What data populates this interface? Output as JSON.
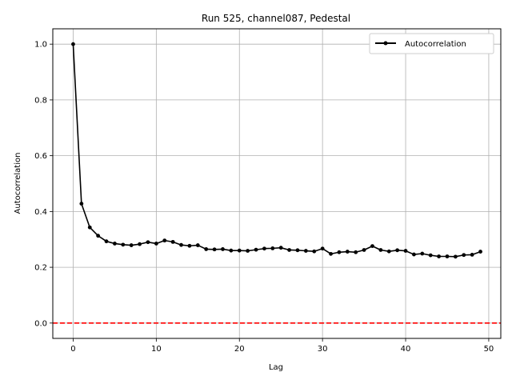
{
  "chart_data": {
    "type": "line",
    "title": "Run 525, channel087, Pedestal",
    "xlabel": "Lag",
    "ylabel": "Autocorrelation",
    "xlim": [
      -2.45,
      51.45
    ],
    "ylim": [
      -0.055,
      1.055
    ],
    "xticks": [
      0,
      10,
      20,
      30,
      40,
      50
    ],
    "yticks": [
      0.0,
      0.2,
      0.4,
      0.6,
      0.8,
      1.0
    ],
    "xtick_labels": [
      "0",
      "10",
      "20",
      "30",
      "40",
      "50"
    ],
    "ytick_labels": [
      "0.0",
      "0.2",
      "0.4",
      "0.6",
      "0.8",
      "1.0"
    ],
    "grid": true,
    "legend_position": "top-right",
    "series": [
      {
        "name": "Autocorrelation",
        "color": "#000000",
        "marker": "circle",
        "x": [
          0,
          1,
          2,
          3,
          4,
          5,
          6,
          7,
          8,
          9,
          10,
          11,
          12,
          13,
          14,
          15,
          16,
          17,
          18,
          19,
          20,
          21,
          22,
          23,
          24,
          25,
          26,
          27,
          28,
          29,
          30,
          31,
          32,
          33,
          34,
          35,
          36,
          37,
          38,
          39,
          40,
          41,
          42,
          43,
          44,
          45,
          46,
          47,
          48,
          49
        ],
        "values": [
          1.0,
          0.428,
          0.343,
          0.313,
          0.293,
          0.285,
          0.281,
          0.279,
          0.283,
          0.29,
          0.285,
          0.296,
          0.291,
          0.28,
          0.277,
          0.279,
          0.265,
          0.264,
          0.265,
          0.26,
          0.26,
          0.259,
          0.263,
          0.267,
          0.268,
          0.27,
          0.262,
          0.261,
          0.259,
          0.257,
          0.267,
          0.248,
          0.254,
          0.256,
          0.254,
          0.262,
          0.276,
          0.262,
          0.257,
          0.261,
          0.259,
          0.246,
          0.249,
          0.243,
          0.239,
          0.239,
          0.238,
          0.244,
          0.245,
          0.256
        ]
      }
    ],
    "reference_line": {
      "y": 0.0,
      "color": "#ff0000",
      "style": "dashed"
    }
  }
}
